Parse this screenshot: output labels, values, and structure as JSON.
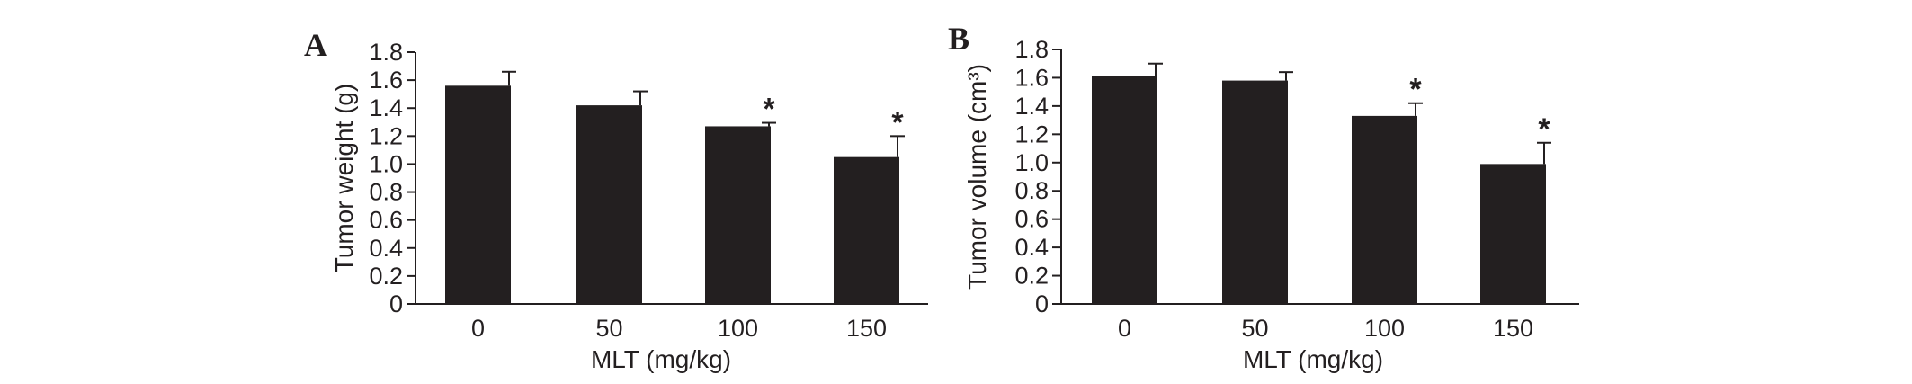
{
  "colors": {
    "bar": "#231f20",
    "axis": "#231f20",
    "background": "#ffffff"
  },
  "chart_data": [
    {
      "type": "bar",
      "panel_label": "A",
      "categories": [
        "0",
        "50",
        "100",
        "150"
      ],
      "values": [
        1.56,
        1.42,
        1.27,
        1.05
      ],
      "errors": [
        0.1,
        0.1,
        0.025,
        0.15
      ],
      "significance": [
        "",
        "",
        "*",
        "*"
      ],
      "title": "",
      "xlabel": "MLT (mg/kg)",
      "ylabel": "Tumor weight (g)",
      "ylim": [
        0,
        1.8
      ],
      "yticks": [
        "0",
        "0.2",
        "0.4",
        "0.6",
        "0.8",
        "1.0",
        "1.2",
        "1.4",
        "1.6",
        "1.8"
      ],
      "grid": false,
      "legend": "none"
    },
    {
      "type": "bar",
      "panel_label": "B",
      "categories": [
        "0",
        "50",
        "100",
        "150"
      ],
      "values": [
        1.61,
        1.58,
        1.33,
        0.99
      ],
      "errors": [
        0.09,
        0.06,
        0.09,
        0.15
      ],
      "significance": [
        "",
        "",
        "*",
        "*"
      ],
      "title": "",
      "xlabel": "MLT (mg/kg)",
      "ylabel": "Tumor volume (cm³)",
      "ylim": [
        0,
        1.8
      ],
      "yticks": [
        "0",
        "0.2",
        "0.4",
        "0.6",
        "0.8",
        "1.0",
        "1.2",
        "1.4",
        "1.6",
        "1.8"
      ],
      "grid": false,
      "legend": "none"
    }
  ]
}
